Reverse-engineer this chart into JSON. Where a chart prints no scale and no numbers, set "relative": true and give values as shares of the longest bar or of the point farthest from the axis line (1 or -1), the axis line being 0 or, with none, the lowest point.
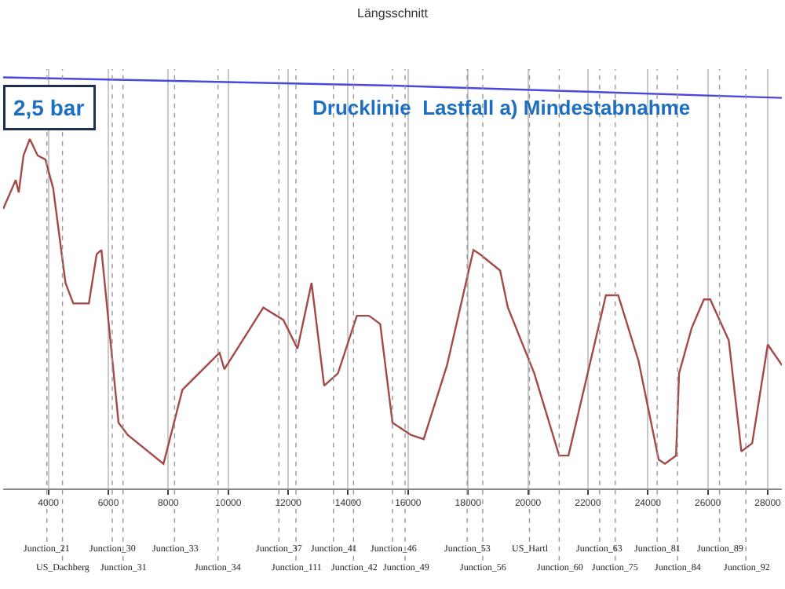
{
  "chart_data": {
    "type": "line",
    "title": "Längsschnitt",
    "relative": true,
    "grid": "x",
    "marker": "none",
    "line_style": "solid",
    "annotations": [
      "2,5 bar",
      "Drucklinie  Lastfall a) Mindestabnahme"
    ],
    "ref_lines": [
      {
        "axis": "x",
        "value": 3950,
        "label": "Junction_21"
      },
      {
        "axis": "x",
        "value": 4470,
        "label": "US_Dachberg"
      },
      {
        "axis": "x",
        "value": 6130,
        "label": "Junction_30"
      },
      {
        "axis": "x",
        "value": 6490,
        "label": "Junction_31"
      },
      {
        "axis": "x",
        "value": 8210,
        "label": "Junction_33"
      },
      {
        "axis": "x",
        "value": 9660,
        "label": "Junction_34"
      },
      {
        "axis": "x",
        "value": 11690,
        "label": "Junction_37"
      },
      {
        "axis": "x",
        "value": 12260,
        "label": "Junction_111"
      },
      {
        "axis": "x",
        "value": 13510,
        "label": "Junction_41"
      },
      {
        "axis": "x",
        "value": 14180,
        "label": "Junction_42"
      },
      {
        "axis": "x",
        "value": 15480,
        "label": "Junction_46"
      },
      {
        "axis": "x",
        "value": 15900,
        "label": "Junction_49"
      },
      {
        "axis": "x",
        "value": 17970,
        "label": "Junction_53"
      },
      {
        "axis": "x",
        "value": 18490,
        "label": "Junction_56"
      },
      {
        "axis": "x",
        "value": 20050,
        "label": "US_Hartl"
      },
      {
        "axis": "x",
        "value": 21040,
        "label": "Junction_60"
      },
      {
        "axis": "x",
        "value": 22390,
        "label": "Junction_63"
      },
      {
        "axis": "x",
        "value": 22910,
        "label": "Junction_75"
      },
      {
        "axis": "x",
        "value": 24310,
        "label": "Junction_81"
      },
      {
        "axis": "x",
        "value": 24990,
        "label": "Junction_84"
      },
      {
        "axis": "x",
        "value": 26390,
        "label": "Junction_89"
      },
      {
        "axis": "x",
        "value": 27270,
        "label": "Junction_92"
      }
    ],
    "xlim": [
      2490,
      28470
    ],
    "xticks": [
      4000,
      6000,
      8000,
      10000,
      12000,
      14000,
      16000,
      18000,
      20000,
      22000,
      24000,
      26000,
      28000
    ],
    "series": [
      {
        "color": "#a34a48",
        "x": [
          2490,
          2910,
          3010,
          3170,
          3380,
          3640,
          3900,
          4160,
          4570,
          4830,
          5090,
          5350,
          5610,
          5770,
          6340,
          6650,
          7840,
          8470,
          9710,
          9870,
          11170,
          11840,
          12310,
          12780,
          13200,
          13660,
          14290,
          14700,
          15070,
          15480,
          16100,
          16520,
          17300,
          18180,
          18390,
          19070,
          19330,
          20210,
          21040,
          21350,
          22600,
          22750,
          23010,
          23690,
          24360,
          24570,
          24940,
          25040,
          25460,
          25870,
          26080,
          26700,
          27120,
          27480,
          28000,
          28470
        ],
        "values": [
          0.68,
          0.75,
          0.72,
          0.81,
          0.85,
          0.81,
          0.8,
          0.73,
          0.5,
          0.45,
          0.45,
          0.45,
          0.57,
          0.58,
          0.16,
          0.13,
          0.06,
          0.24,
          0.33,
          0.29,
          0.44,
          0.41,
          0.34,
          0.5,
          0.25,
          0.28,
          0.42,
          0.42,
          0.4,
          0.16,
          0.13,
          0.12,
          0.3,
          0.58,
          0.57,
          0.53,
          0.44,
          0.28,
          0.08,
          0.08,
          0.47,
          0.47,
          0.47,
          0.31,
          0.07,
          0.06,
          0.08,
          0.28,
          0.39,
          0.46,
          0.46,
          0.36,
          0.09,
          0.11,
          0.35,
          0.3
        ]
      },
      {
        "color": "#4a48dc",
        "x": [
          2490,
          15480,
          28470
        ],
        "values": [
          1.0,
          0.98,
          0.95
        ]
      }
    ]
  }
}
